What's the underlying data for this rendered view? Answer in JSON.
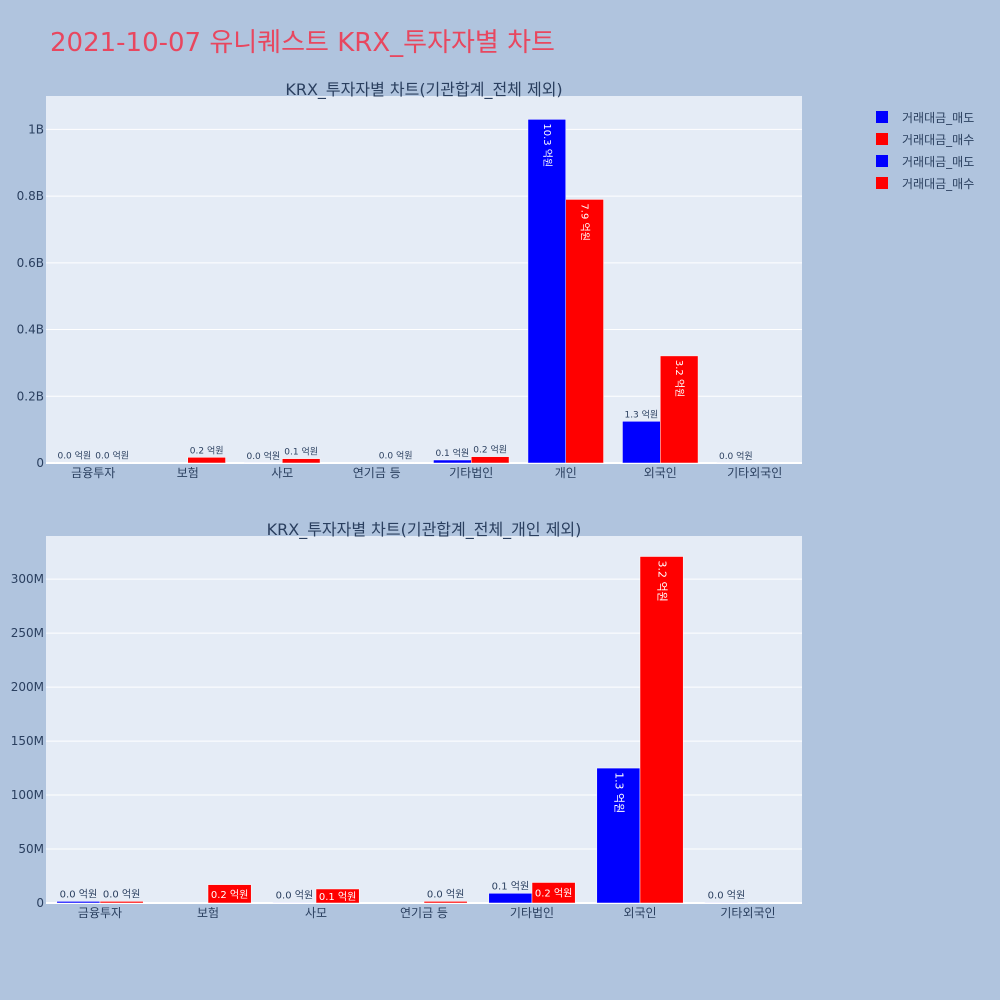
{
  "page": {
    "title": "2021-10-07 유니퀘스트 KRX_투자자별 차트"
  },
  "colors": {
    "sell": "#0000ff",
    "buy": "#ff0000",
    "plot_bg": "#e5ecf6",
    "page_bg": "#b0c4de",
    "axis_text": "#2a3f5f"
  },
  "legend": {
    "items": [
      {
        "label": "거래대금_매도",
        "color": "#0000ff"
      },
      {
        "label": "거래대금_매수",
        "color": "#ff0000"
      },
      {
        "label": "거래대금_매도",
        "color": "#0000ff"
      },
      {
        "label": "거래대금_매수",
        "color": "#ff0000"
      }
    ]
  },
  "chart_data": [
    {
      "type": "bar",
      "title": "KRX_투자자별 차트(기관합계_전체 제외)",
      "categories": [
        "금융투자",
        "보험",
        "사모",
        "연기금 등",
        "기타법인",
        "개인",
        "외국인",
        "기타외국인"
      ],
      "series": [
        {
          "name": "거래대금_매도",
          "values": [
            1500000,
            null,
            500000,
            null,
            9000000,
            1030000000,
            125000000,
            500000
          ],
          "labels": [
            "0.0 억원",
            "",
            "0.0 억원",
            "",
            "0.1 억원",
            "10.3 억원",
            "1.3 억원",
            "0.0 억원"
          ]
        },
        {
          "name": "거래대금_매수",
          "values": [
            1500000,
            17000000,
            13000000,
            1500000,
            19000000,
            790000000,
            321000000,
            null
          ],
          "labels": [
            "0.0 억원",
            "0.2 억원",
            "0.1 억원",
            "0.0 억원",
            "0.2 억원",
            "7.9 억원",
            "3.2 억원",
            ""
          ]
        }
      ],
      "yticks": [
        0,
        200000000,
        400000000,
        600000000,
        800000000,
        1000000000
      ],
      "ytick_labels": [
        "0",
        "0.2B",
        "0.4B",
        "0.6B",
        "0.8B",
        "1B"
      ],
      "ylim": [
        0,
        1100000000
      ]
    },
    {
      "type": "bar",
      "title": "KRX_투자자별 차트(기관합계_전체_개인 제외)",
      "categories": [
        "금융투자",
        "보험",
        "사모",
        "연기금 등",
        "기타법인",
        "외국인",
        "기타외국인"
      ],
      "series": [
        {
          "name": "거래대금_매도",
          "values": [
            1500000,
            null,
            500000,
            null,
            9000000,
            125000000,
            500000
          ],
          "labels": [
            "0.0 억원",
            "",
            "0.0 억원",
            "",
            "0.1 억원",
            "1.3 억원",
            "0.0 억원"
          ]
        },
        {
          "name": "거래대금_매수",
          "values": [
            1500000,
            17000000,
            13000000,
            1500000,
            19000000,
            321000000,
            null
          ],
          "labels": [
            "0.0 억원",
            "0.2 억원",
            "0.1 억원",
            "0.0 억원",
            "0.2 억원",
            "3.2 억원",
            ""
          ]
        }
      ],
      "yticks": [
        0,
        50000000,
        100000000,
        150000000,
        200000000,
        250000000,
        300000000
      ],
      "ytick_labels": [
        "0",
        "50M",
        "100M",
        "150M",
        "200M",
        "250M",
        "300M"
      ],
      "ylim": [
        0,
        340000000
      ]
    }
  ]
}
